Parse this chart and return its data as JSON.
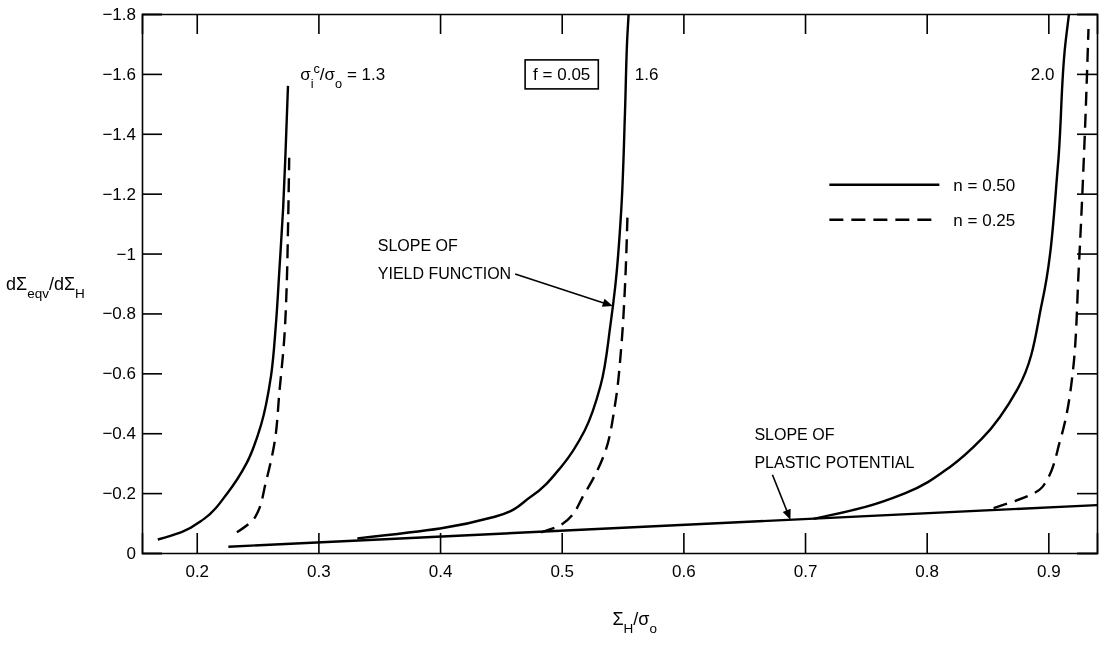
{
  "chart_data": {
    "type": "line",
    "xlabel": "Σ$_{H}$/σ$_{o}$",
    "ylabel": "dΣ$_{eqv}$/dΣ$_{H}$",
    "xlim": [
      0.155,
      0.94
    ],
    "ylim": [
      0,
      -1.8
    ],
    "xticks": [
      0.2,
      0.3,
      0.4,
      0.5,
      0.6,
      0.7,
      0.8,
      0.9
    ],
    "yticks": [
      0,
      -0.2,
      -0.4,
      -0.6,
      -0.8,
      -1.0,
      -1.2,
      -1.4,
      -1.6,
      -1.8
    ],
    "grid": false,
    "legend": "top right",
    "marker": "none",
    "series": [
      {
        "name": "n = 0.50",
        "color": "#000000",
        "line_style": "solid",
        "x": [
          0.168,
          0.187,
          0.206,
          0.225,
          0.241,
          0.253,
          0.261,
          0.265,
          0.268,
          0.271,
          0.273,
          0.275
        ],
        "values": [
          -0.045,
          -0.069,
          -0.114,
          -0.199,
          -0.3,
          -0.43,
          -0.59,
          -0.76,
          -0.95,
          -1.15,
          -1.34,
          -1.56
        ]
      },
      {
        "name": "n = 0.25",
        "color": "#000000",
        "line_style": "dashed",
        "x": [
          0.233,
          0.248,
          0.257,
          0.264,
          0.268,
          0.272,
          0.274,
          0.275,
          0.276
        ],
        "values": [
          -0.069,
          -0.12,
          -0.24,
          -0.37,
          -0.54,
          -0.72,
          -0.9,
          -1.08,
          -1.32
        ]
      },
      {
        "color": "#000000",
        "line_style": "solid",
        "x": [
          0.332,
          0.4,
          0.445,
          0.474,
          0.5,
          0.519,
          0.532,
          0.54,
          0.544,
          0.549,
          0.552,
          0.554,
          0.555
        ],
        "values": [
          -0.049,
          -0.082,
          -0.121,
          -0.186,
          -0.29,
          -0.41,
          -0.56,
          -0.76,
          -0.89,
          -1.15,
          -1.47,
          -1.73,
          -1.8
        ]
      },
      {
        "color": "#000000",
        "line_style": "dashed",
        "x": [
          0.483,
          0.5,
          0.519,
          0.535,
          0.544,
          0.549,
          0.552,
          0.554
        ],
        "values": [
          -0.069,
          -0.095,
          -0.2,
          -0.33,
          -0.5,
          -0.69,
          -0.89,
          -1.12
        ]
      },
      {
        "color": "#000000",
        "line_style": "solid",
        "x": [
          0.707,
          0.749,
          0.782,
          0.82,
          0.845,
          0.875,
          0.895,
          0.908,
          0.914,
          0.917
        ],
        "values": [
          -0.114,
          -0.153,
          -0.199,
          -0.29,
          -0.38,
          -0.55,
          -0.84,
          -1.3,
          -1.7,
          -1.8
        ]
      },
      {
        "color": "#000000",
        "line_style": "dashed",
        "x": [
          0.855,
          0.895,
          0.91,
          0.92,
          0.925,
          0.93,
          0.933
        ],
        "values": [
          -0.15,
          -0.22,
          -0.38,
          -0.6,
          -0.95,
          -1.4,
          -1.75
        ]
      },
      {
        "color": "#000000",
        "line_style": "solid",
        "x": [
          0.226,
          0.94
        ],
        "values": [
          -0.021,
          -0.16
        ]
      }
    ],
    "annotations": [
      "σ$_{i}$$^{c}$/σ$_{o}$ = 1.3",
      "1.6",
      "2.0",
      "f = 0.05",
      {
        "text": "SLOPE OF\nYIELD FUNCTION",
        "x": 0.542,
        "y": -0.825
      },
      {
        "text": "SLOPE OF\nPLASTIC POTENTIAL",
        "x": 0.688,
        "y": -0.111
      }
    ]
  }
}
